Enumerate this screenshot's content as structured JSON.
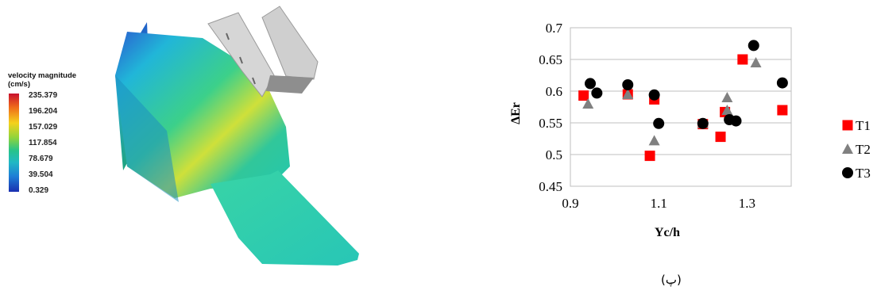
{
  "left_figure": {
    "legend_title": "velocity magnitude\n(cm/s)",
    "colorbar_ticks": [
      "235.379",
      "196.204",
      "157.029",
      "117.854",
      "78.679",
      "39.504",
      "0.329"
    ]
  },
  "chart_data": {
    "type": "scatter",
    "xlabel": "Yc/h",
    "ylabel": "ΔEr",
    "xlim": [
      0.9,
      1.4
    ],
    "ylim": [
      0.45,
      0.7
    ],
    "x_ticks": [
      "0.9",
      "1.1",
      "1.3"
    ],
    "x_tick_values": [
      0.9,
      1.1,
      1.3
    ],
    "y_ticks": [
      "0.45",
      "0.5",
      "0.55",
      "0.6",
      "0.65",
      "0.7"
    ],
    "y_tick_values": [
      0.45,
      0.5,
      0.55,
      0.6,
      0.65,
      0.7
    ],
    "grid": "horizontal",
    "legend_position": "right",
    "series": [
      {
        "name": "T1",
        "marker": "square",
        "color": "#ff0000",
        "x": [
          0.93,
          1.03,
          1.09,
          1.08,
          1.2,
          1.25,
          1.24,
          1.29,
          1.38
        ],
        "y": [
          0.593,
          0.595,
          0.587,
          0.498,
          0.548,
          0.567,
          0.528,
          0.65,
          0.57
        ]
      },
      {
        "name": "T2",
        "marker": "triangle",
        "color": "#808080",
        "x": [
          0.94,
          1.03,
          1.09,
          1.2,
          1.255,
          1.255,
          1.32
        ],
        "y": [
          0.58,
          0.595,
          0.522,
          0.549,
          0.59,
          0.57,
          0.645
        ]
      },
      {
        "name": "T3",
        "marker": "circle",
        "color": "#000000",
        "x": [
          0.945,
          0.96,
          1.03,
          1.09,
          1.1,
          1.2,
          1.26,
          1.275,
          1.315,
          1.38
        ],
        "y": [
          0.612,
          0.597,
          0.61,
          0.594,
          0.549,
          0.549,
          0.555,
          0.553,
          0.672,
          0.613
        ]
      }
    ]
  },
  "caption": "(پ)"
}
